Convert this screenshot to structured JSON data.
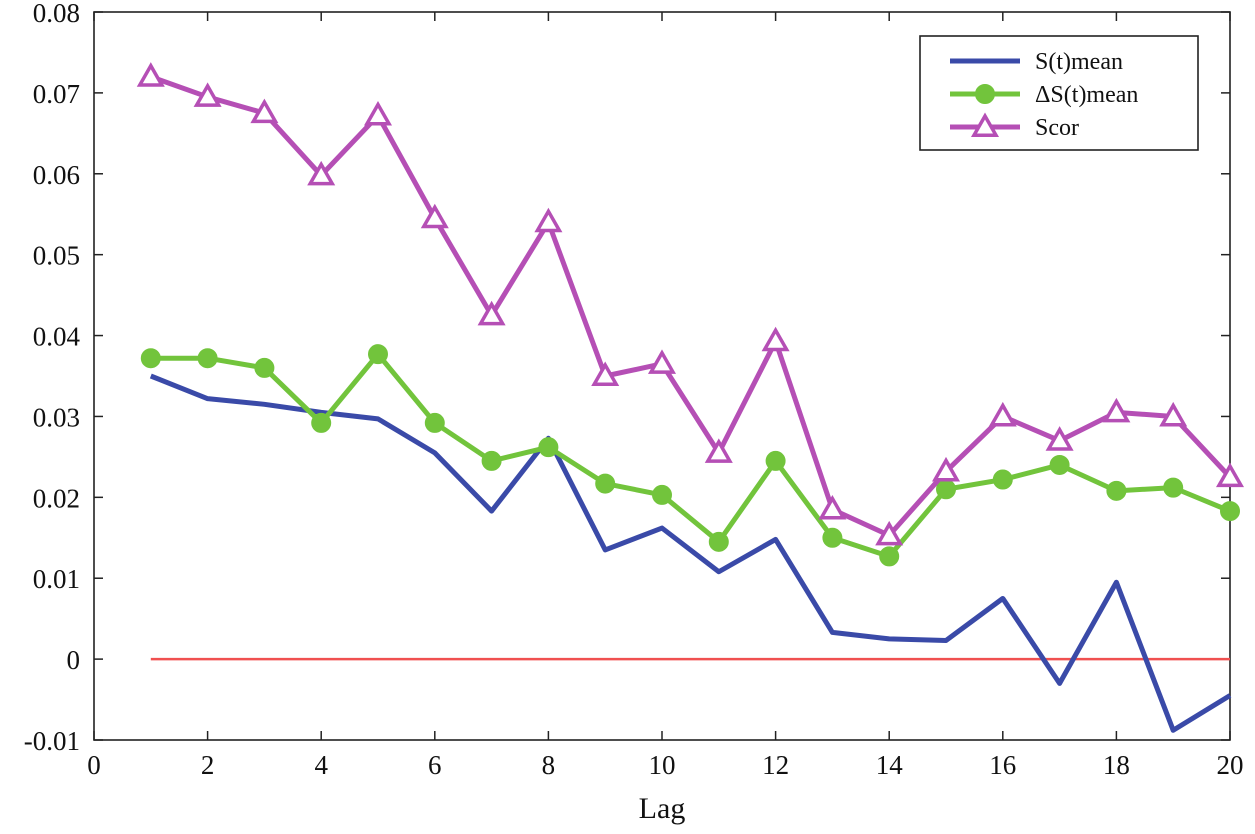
{
  "chart_data": {
    "type": "line",
    "title": "",
    "xlabel": "Lag",
    "ylabel": "",
    "xlim": [
      0,
      20
    ],
    "ylim": [
      -0.01,
      0.08
    ],
    "xticks": [
      0,
      2,
      4,
      6,
      8,
      10,
      12,
      14,
      16,
      18,
      20
    ],
    "xtick_labels": [
      "0",
      "2",
      "4",
      "6",
      "8",
      "10",
      "12",
      "14",
      "16",
      "18",
      "20"
    ],
    "yticks": [
      -0.01,
      0,
      0.01,
      0.02,
      0.03,
      0.04,
      0.05,
      0.06,
      0.07,
      0.08
    ],
    "ytick_labels": [
      "-0.01",
      "0",
      "0.01",
      "0.02",
      "0.03",
      "0.04",
      "0.05",
      "0.06",
      "0.07",
      "0.08"
    ],
    "grid": false,
    "legend_position": "top-right",
    "x": [
      1,
      2,
      3,
      4,
      5,
      6,
      7,
      8,
      9,
      10,
      11,
      12,
      13,
      14,
      15,
      16,
      17,
      18,
      19,
      20
    ],
    "series": [
      {
        "name": "S(t)mean",
        "color": "#3a4aa8",
        "marker": "none",
        "values": [
          0.035,
          0.0322,
          0.0315,
          0.0305,
          0.0297,
          0.0255,
          0.0183,
          0.0273,
          0.0135,
          0.0162,
          0.0108,
          0.0148,
          0.0033,
          0.0025,
          0.0023,
          0.0075,
          -0.003,
          0.0095,
          -0.0088,
          -0.0045
        ]
      },
      {
        "name": "ΔS(t)mean",
        "color": "#72c43c",
        "marker": "circle",
        "values": [
          0.0372,
          0.0372,
          0.036,
          0.0292,
          0.0377,
          0.0292,
          0.0245,
          0.0262,
          0.0217,
          0.0203,
          0.0145,
          0.0245,
          0.015,
          0.0127,
          0.021,
          0.0222,
          0.024,
          0.0208,
          0.0212,
          0.0183
        ]
      },
      {
        "name": "Scor",
        "color": "#b54fb5",
        "marker": "triangle",
        "values": [
          0.072,
          0.0695,
          0.0675,
          0.0598,
          0.0672,
          0.0545,
          0.0425,
          0.054,
          0.035,
          0.0365,
          0.0255,
          0.0393,
          0.0185,
          0.0153,
          0.0232,
          0.03,
          0.027,
          0.0305,
          0.03,
          0.0225
        ]
      }
    ],
    "reference_line": {
      "y": 0,
      "x_from": 1,
      "x_to": 20,
      "color": "#f05050"
    }
  }
}
